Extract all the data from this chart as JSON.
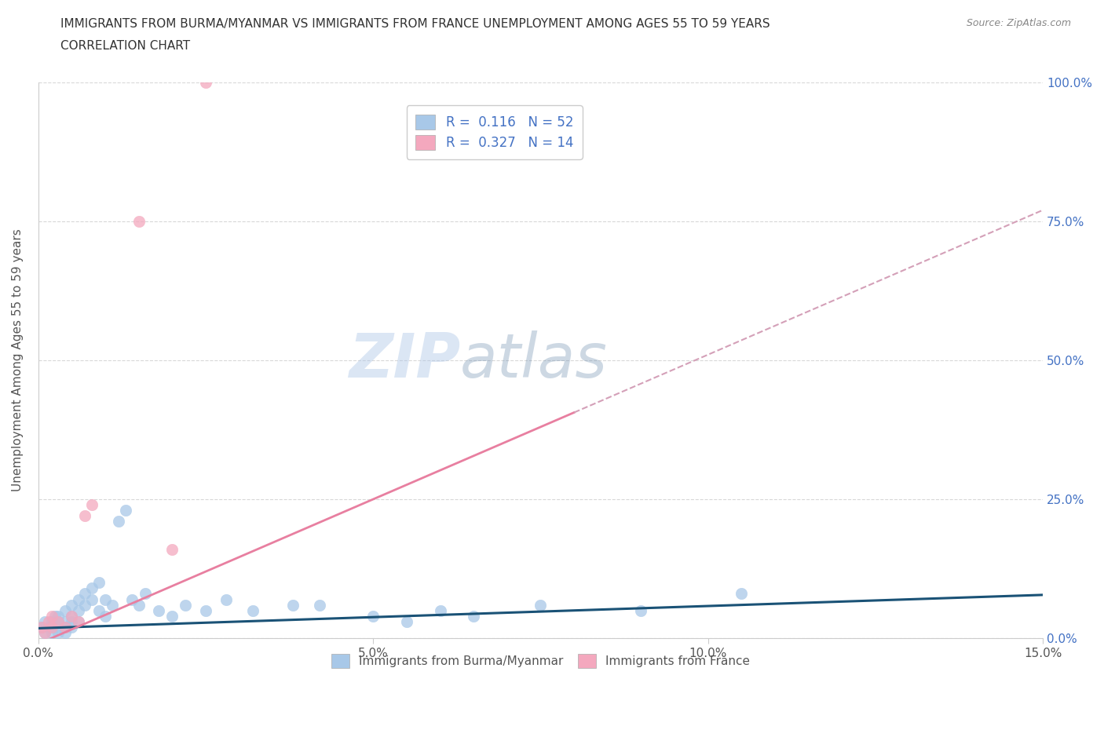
{
  "title_line1": "IMMIGRANTS FROM BURMA/MYANMAR VS IMMIGRANTS FROM FRANCE UNEMPLOYMENT AMONG AGES 55 TO 59 YEARS",
  "title_line2": "CORRELATION CHART",
  "source": "Source: ZipAtlas.com",
  "ylabel": "Unemployment Among Ages 55 to 59 years",
  "xlim": [
    0.0,
    0.15
  ],
  "ylim": [
    0.0,
    1.0
  ],
  "xticks": [
    0.0,
    0.05,
    0.1,
    0.15
  ],
  "xtick_labels": [
    "0.0%",
    "5.0%",
    "10.0%",
    "15.0%"
  ],
  "ytick_labels_right": [
    "0.0%",
    "25.0%",
    "50.0%",
    "75.0%",
    "100.0%"
  ],
  "ytick_vals_right": [
    0.0,
    0.25,
    0.5,
    0.75,
    1.0
  ],
  "color_burma": "#a8c8e8",
  "color_france": "#f4a8be",
  "color_burma_line": "#1a5276",
  "color_france_line_solid": "#e87fa0",
  "color_france_line_dashed": "#d4a0b8",
  "watermark_zip": "ZIP",
  "watermark_atlas": "atlas",
  "burma_x": [
    0.0005,
    0.001,
    0.001,
    0.0015,
    0.002,
    0.002,
    0.002,
    0.0025,
    0.003,
    0.003,
    0.003,
    0.003,
    0.004,
    0.004,
    0.004,
    0.004,
    0.005,
    0.005,
    0.005,
    0.005,
    0.006,
    0.006,
    0.006,
    0.007,
    0.007,
    0.008,
    0.008,
    0.009,
    0.009,
    0.01,
    0.01,
    0.011,
    0.012,
    0.013,
    0.014,
    0.015,
    0.016,
    0.018,
    0.02,
    0.022,
    0.025,
    0.028,
    0.032,
    0.038,
    0.042,
    0.05,
    0.055,
    0.06,
    0.065,
    0.075,
    0.09,
    0.105
  ],
  "burma_y": [
    0.02,
    0.01,
    0.03,
    0.02,
    0.01,
    0.03,
    0.02,
    0.04,
    0.02,
    0.03,
    0.01,
    0.04,
    0.02,
    0.03,
    0.01,
    0.05,
    0.02,
    0.04,
    0.03,
    0.06,
    0.05,
    0.07,
    0.03,
    0.08,
    0.06,
    0.09,
    0.07,
    0.1,
    0.05,
    0.07,
    0.04,
    0.06,
    0.21,
    0.23,
    0.07,
    0.06,
    0.08,
    0.05,
    0.04,
    0.06,
    0.05,
    0.07,
    0.05,
    0.06,
    0.06,
    0.04,
    0.03,
    0.05,
    0.04,
    0.06,
    0.05,
    0.08
  ],
  "france_x": [
    0.0005,
    0.001,
    0.0015,
    0.002,
    0.002,
    0.003,
    0.004,
    0.005,
    0.006,
    0.007,
    0.008,
    0.015,
    0.02,
    0.025
  ],
  "france_y": [
    0.02,
    0.01,
    0.03,
    0.02,
    0.04,
    0.03,
    0.02,
    0.04,
    0.03,
    0.22,
    0.24,
    0.75,
    0.16,
    1.0
  ],
  "france_line_solid_end": 0.08,
  "france_line_dashed_start": 0.08,
  "france_line_dashed_end": 0.15,
  "burma_line_slope": 0.4,
  "burma_line_intercept": 0.018,
  "france_line_slope": 5.2,
  "france_line_intercept": -0.01,
  "grid_color": "#d8d8d8",
  "background_color": "#ffffff",
  "title_color": "#333333",
  "axis_label_color": "#555555",
  "right_axis_color": "#4472c4",
  "legend_text_color": "#4472c4",
  "bottom_legend_color": "#555555"
}
